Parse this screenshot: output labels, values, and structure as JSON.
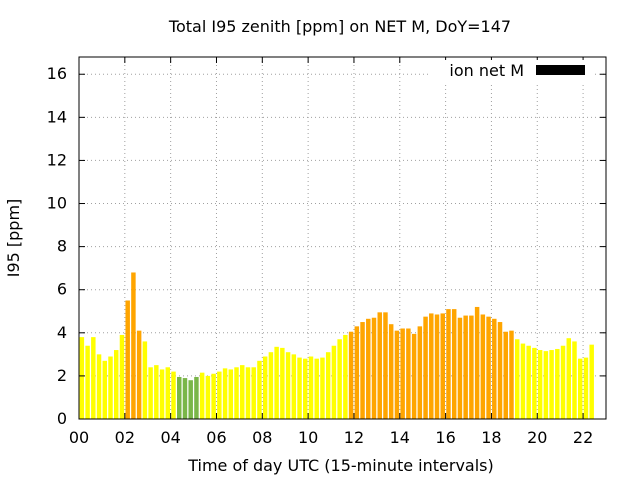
{
  "chart_data": {
    "type": "bar",
    "title": "Total I95 zenith [ppm] on NET M, DoY=147",
    "xlabel": "Time of day UTC (15-minute intervals)",
    "ylabel": "I95 [ppm]",
    "ylim": [
      0,
      16.8
    ],
    "xlim": [
      0,
      23
    ],
    "x_tick_labels": [
      "00",
      "02",
      "04",
      "06",
      "08",
      "10",
      "12",
      "14",
      "16",
      "18",
      "20",
      "22"
    ],
    "y_tick_labels": [
      "0",
      "2",
      "4",
      "6",
      "8",
      "10",
      "12",
      "14",
      "16"
    ],
    "grid": true,
    "legend": {
      "position": "top-right",
      "label": "ion net M",
      "color": "#000000"
    },
    "bar_interval_hours": 0.25,
    "category_colors": {
      "low": "#7ab648",
      "moderate": "#ffff00",
      "elevated": "#ffa500"
    },
    "values": [
      3.8,
      3.4,
      3.8,
      3.0,
      2.7,
      2.9,
      3.2,
      3.9,
      5.5,
      6.8,
      4.1,
      3.6,
      2.4,
      2.5,
      2.3,
      2.4,
      2.2,
      1.95,
      1.9,
      1.8,
      1.95,
      2.15,
      2.0,
      2.1,
      2.2,
      2.35,
      2.3,
      2.4,
      2.5,
      2.4,
      2.4,
      2.7,
      2.9,
      3.1,
      3.35,
      3.3,
      3.1,
      3.0,
      2.85,
      2.8,
      2.9,
      2.8,
      2.85,
      3.1,
      3.4,
      3.7,
      3.9,
      4.05,
      4.3,
      4.5,
      4.65,
      4.7,
      4.95,
      4.95,
      4.4,
      4.1,
      4.2,
      4.2,
      3.95,
      4.3,
      4.75,
      4.9,
      4.85,
      4.9,
      5.1,
      5.1,
      4.7,
      4.8,
      4.8,
      5.2,
      4.85,
      4.75,
      4.65,
      4.5,
      4.05,
      4.1,
      3.7,
      3.5,
      3.4,
      3.3,
      3.2,
      3.15,
      3.2,
      3.25,
      3.4,
      3.75,
      3.6,
      2.8,
      2.85,
      3.45
    ],
    "categories_per_bar": [
      "moderate",
      "moderate",
      "moderate",
      "moderate",
      "moderate",
      "moderate",
      "moderate",
      "moderate",
      "elevated",
      "elevated",
      "elevated",
      "moderate",
      "moderate",
      "moderate",
      "moderate",
      "moderate",
      "moderate",
      "low",
      "low",
      "low",
      "low",
      "moderate",
      "moderate",
      "moderate",
      "moderate",
      "moderate",
      "moderate",
      "moderate",
      "moderate",
      "moderate",
      "moderate",
      "moderate",
      "moderate",
      "moderate",
      "moderate",
      "moderate",
      "moderate",
      "moderate",
      "moderate",
      "moderate",
      "moderate",
      "moderate",
      "moderate",
      "moderate",
      "moderate",
      "moderate",
      "moderate",
      "elevated",
      "elevated",
      "elevated",
      "elevated",
      "elevated",
      "elevated",
      "elevated",
      "elevated",
      "elevated",
      "elevated",
      "elevated",
      "elevated",
      "elevated",
      "elevated",
      "elevated",
      "elevated",
      "elevated",
      "elevated",
      "elevated",
      "elevated",
      "elevated",
      "elevated",
      "elevated",
      "elevated",
      "elevated",
      "elevated",
      "elevated",
      "elevated",
      "elevated",
      "moderate",
      "moderate",
      "moderate",
      "moderate",
      "moderate",
      "moderate",
      "moderate",
      "moderate",
      "moderate",
      "moderate",
      "moderate",
      "moderate",
      "moderate",
      "moderate"
    ]
  }
}
